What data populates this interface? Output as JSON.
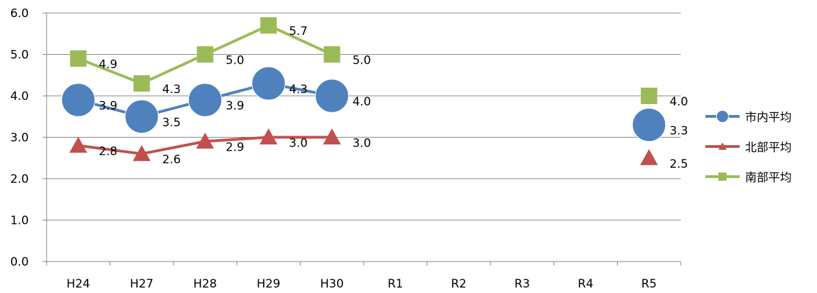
{
  "chart_data": {
    "type": "line",
    "categories": [
      "H24",
      "H27",
      "H28",
      "H29",
      "H30",
      "R1",
      "R2",
      "R3",
      "R4",
      "R5"
    ],
    "yticks": [
      "0.0",
      "1.0",
      "2.0",
      "3.0",
      "4.0",
      "5.0",
      "6.0"
    ],
    "ylim": [
      0,
      6
    ],
    "grid": true,
    "legend_position": "right",
    "series": [
      {
        "name": "市内平均",
        "marker": "circle",
        "color": "#4F81BD",
        "values": [
          3.9,
          3.5,
          3.9,
          4.3,
          4.0,
          null,
          null,
          null,
          null,
          3.3
        ],
        "labels": [
          "3.9",
          "3.5",
          "3.9",
          "4.3",
          "4.0",
          null,
          null,
          null,
          null,
          "3.3"
        ]
      },
      {
        "name": "北部平均",
        "marker": "triangle",
        "color": "#C0504D",
        "values": [
          2.8,
          2.6,
          2.9,
          3.0,
          3.0,
          null,
          null,
          null,
          null,
          2.5
        ],
        "labels": [
          "2.8",
          "2.6",
          "2.9",
          "3.0",
          "3.0",
          null,
          null,
          null,
          null,
          "2.5"
        ]
      },
      {
        "name": "南部平均",
        "marker": "square",
        "color": "#9BBB59",
        "values": [
          4.9,
          4.3,
          5.0,
          5.7,
          5.0,
          null,
          null,
          null,
          null,
          4.0
        ],
        "labels": [
          "4.9",
          "4.3",
          "5.0",
          "5.7",
          "5.0",
          null,
          null,
          null,
          null,
          "4.0"
        ]
      }
    ]
  }
}
